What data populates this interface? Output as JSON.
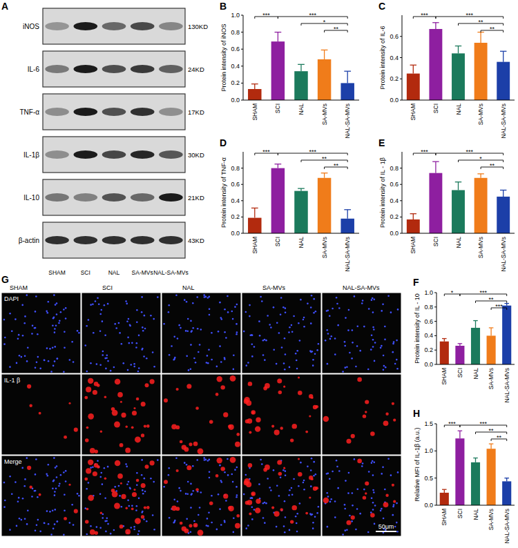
{
  "chart_data": [
    {
      "type": "bar",
      "panel": "B",
      "y_label": "Protein intensity of  iNOS",
      "categories": [
        "SHAM",
        "SCI",
        "NAL",
        "SA-MVs",
        "NAL-SA-MVs"
      ],
      "colors": [
        "#b22a0e",
        "#8e1fa0",
        "#1b7a5c",
        "#f07c1a",
        "#1c3fa8"
      ],
      "values": [
        0.13,
        0.69,
        0.34,
        0.48,
        0.2
      ],
      "errors": [
        0.06,
        0.11,
        0.08,
        0.11,
        0.14
      ],
      "ylim": [
        0,
        1.0
      ],
      "yticks": [
        {
          "value": 0,
          "label": "0.0"
        },
        {
          "value": 0.2,
          "label": "0.2"
        },
        {
          "value": 0.4,
          "label": "0.4"
        },
        {
          "value": 0.6,
          "label": "0.6"
        },
        {
          "value": 0.8,
          "label": "0.8"
        },
        {
          "value": 1.0,
          "label": "1.0"
        }
      ],
      "significance": [
        {
          "groups": [
            0,
            1
          ],
          "label": "***"
        },
        {
          "groups": [
            1,
            4
          ],
          "label": "***"
        },
        {
          "groups": [
            2,
            4
          ],
          "label": "*"
        },
        {
          "groups": [
            3,
            4
          ],
          "label": "**"
        }
      ]
    },
    {
      "type": "bar",
      "panel": "C",
      "y_label": "Protein intensity of  IL-6",
      "categories": [
        "SHAM",
        "SCI",
        "NAL",
        "SA-MVs",
        "NAL-SA-MVs"
      ],
      "colors": [
        "#b22a0e",
        "#8e1fa0",
        "#1b7a5c",
        "#f07c1a",
        "#1c3fa8"
      ],
      "values": [
        0.25,
        0.67,
        0.44,
        0.54,
        0.36
      ],
      "errors": [
        0.08,
        0.06,
        0.07,
        0.1,
        0.1
      ],
      "ylim": [
        0,
        0.8
      ],
      "yticks": [
        {
          "value": 0,
          "label": "0.0"
        },
        {
          "value": 0.2,
          "label": "0.2"
        },
        {
          "value": 0.4,
          "label": "0.4"
        },
        {
          "value": 0.6,
          "label": "0.6"
        }
      ],
      "significance": [
        {
          "groups": [
            0,
            1
          ],
          "label": "***"
        },
        {
          "groups": [
            1,
            4
          ],
          "label": "***"
        },
        {
          "groups": [
            2,
            4
          ],
          "label": "**"
        },
        {
          "groups": [
            3,
            4
          ],
          "label": "**"
        }
      ]
    },
    {
      "type": "bar",
      "panel": "D",
      "y_label": "Protein intensity of  TNF-α",
      "categories": [
        "SHAM",
        "SCI",
        "NAL",
        "SA-MVs",
        "NAL-SA-MVs"
      ],
      "colors": [
        "#b22a0e",
        "#8e1fa0",
        "#1b7a5c",
        "#f07c1a",
        "#1c3fa8"
      ],
      "values": [
        0.19,
        0.8,
        0.52,
        0.68,
        0.18
      ],
      "errors": [
        0.12,
        0.05,
        0.03,
        0.06,
        0.11
      ],
      "ylim": [
        0,
        1.0
      ],
      "yticks": [
        {
          "value": 0,
          "label": "0.0"
        },
        {
          "value": 0.2,
          "label": "0.2"
        },
        {
          "value": 0.4,
          "label": "0.4"
        },
        {
          "value": 0.6,
          "label": "0.6"
        },
        {
          "value": 0.8,
          "label": "0.8"
        }
      ],
      "significance": [
        {
          "groups": [
            0,
            1
          ],
          "label": "***"
        },
        {
          "groups": [
            1,
            4
          ],
          "label": "***"
        },
        {
          "groups": [
            2,
            4
          ],
          "label": "**"
        },
        {
          "groups": [
            3,
            4
          ],
          "label": "**"
        }
      ]
    },
    {
      "type": "bar",
      "panel": "E",
      "y_label": "Protein intensity of IL - 1β",
      "categories": [
        "SHAM",
        "SCI",
        "NAL",
        "SA-MVs",
        "NAL-SA-MVs"
      ],
      "colors": [
        "#b22a0e",
        "#8e1fa0",
        "#1b7a5c",
        "#f07c1a",
        "#1c3fa8"
      ],
      "values": [
        0.17,
        0.74,
        0.53,
        0.68,
        0.45
      ],
      "errors": [
        0.07,
        0.14,
        0.1,
        0.05,
        0.08
      ],
      "ylim": [
        0,
        1.0
      ],
      "yticks": [
        {
          "value": 0,
          "label": "0.0"
        },
        {
          "value": 0.2,
          "label": "0.2"
        },
        {
          "value": 0.4,
          "label": "0.4"
        },
        {
          "value": 0.6,
          "label": "0.6"
        },
        {
          "value": 0.8,
          "label": "0.8"
        }
      ],
      "significance": [
        {
          "groups": [
            0,
            1
          ],
          "label": "***"
        },
        {
          "groups": [
            1,
            4
          ],
          "label": "***"
        },
        {
          "groups": [
            2,
            4
          ],
          "label": "*"
        },
        {
          "groups": [
            3,
            4
          ],
          "label": "**"
        }
      ]
    },
    {
      "type": "bar",
      "panel": "F",
      "y_label": "Protein intensity of  IL - 10",
      "categories": [
        "SHAM",
        "SCI",
        "NAL",
        "SA-MVs",
        "NAL-SA-MVs"
      ],
      "colors": [
        "#b22a0e",
        "#8e1fa0",
        "#1b7a5c",
        "#f07c1a",
        "#1c3fa8"
      ],
      "values": [
        0.32,
        0.26,
        0.51,
        0.4,
        0.82
      ],
      "errors": [
        0.04,
        0.03,
        0.1,
        0.11,
        0.03
      ],
      "ylim": [
        0,
        1.0
      ],
      "yticks": [
        {
          "value": 0,
          "label": "0.0"
        },
        {
          "value": 0.2,
          "label": "0.2"
        },
        {
          "value": 0.4,
          "label": "0.4"
        },
        {
          "value": 0.6,
          "label": "0.6"
        },
        {
          "value": 0.8,
          "label": "0.8"
        },
        {
          "value": 1.0,
          "label": "1.0"
        }
      ],
      "significance": [
        {
          "groups": [
            0,
            1
          ],
          "label": "*"
        },
        {
          "groups": [
            1,
            4
          ],
          "label": "***"
        },
        {
          "groups": [
            2,
            4
          ],
          "label": "**"
        },
        {
          "groups": [
            3,
            4
          ],
          "label": "***"
        }
      ]
    },
    {
      "type": "bar",
      "panel": "H",
      "y_label": "Relative MFI of IL-1β  (a.u.)",
      "categories": [
        "SHAM",
        "SCI",
        "NAL",
        "SA-MVs",
        "NAL-SA-MVs"
      ],
      "colors": [
        "#b22a0e",
        "#8e1fa0",
        "#1b7a5c",
        "#f07c1a",
        "#1c3fa8"
      ],
      "values": [
        0.23,
        1.23,
        0.79,
        1.04,
        0.44
      ],
      "errors": [
        0.06,
        0.14,
        0.08,
        0.09,
        0.06
      ],
      "ylim": [
        0,
        1.5
      ],
      "yticks": [
        {
          "value": 0,
          "label": "0.0"
        },
        {
          "value": 0.5,
          "label": "0.5"
        },
        {
          "value": 1.0,
          "label": "1.0"
        },
        {
          "value": 1.5,
          "label": "1.5"
        }
      ],
      "significance": [
        {
          "groups": [
            0,
            1
          ],
          "label": "***"
        },
        {
          "groups": [
            1,
            4
          ],
          "label": "***"
        },
        {
          "groups": [
            2,
            4
          ],
          "label": "**"
        },
        {
          "groups": [
            3,
            4
          ],
          "label": "**"
        }
      ]
    }
  ],
  "blot": {
    "panel": "A",
    "proteins": [
      {
        "name": "iNOS",
        "size": "130KD"
      },
      {
        "name": "IL-6",
        "size": "24KD"
      },
      {
        "name": "TNF-α",
        "size": "17KD"
      },
      {
        "name": "IL-1β",
        "size": "30KD"
      },
      {
        "name": "IL-10",
        "size": "21KD"
      },
      {
        "name": "β-actin",
        "size": "43KD"
      }
    ],
    "lanes": [
      "SHAM",
      "SCI",
      "NAL",
      "SA-MVs",
      "NAL-SA-MVs"
    ]
  },
  "fluorescence": {
    "panel": "G",
    "columns": [
      "SHAM",
      "SCI",
      "NAL",
      "SA-MVs",
      "NAL-SA-MVs"
    ],
    "rows": [
      "DAPI",
      "IL-1 β",
      "Merge"
    ],
    "scale_bar": "50μm"
  }
}
